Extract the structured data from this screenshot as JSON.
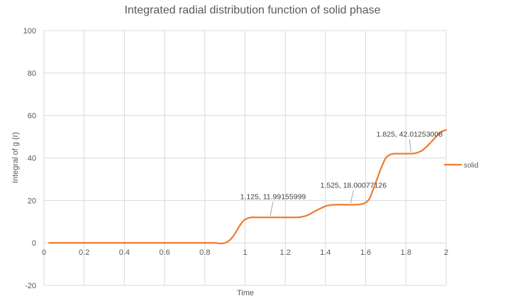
{
  "chart_data": {
    "type": "line",
    "title": "Integrated radial distribution function of solid phase",
    "xlabel": "Time",
    "ylabel": "Integral of g (r)",
    "xlim": [
      0,
      2
    ],
    "ylim": [
      -20,
      100
    ],
    "x_ticks": [
      "0",
      "0.2",
      "0.4",
      "0.6",
      "0.8",
      "1",
      "1.2",
      "1.4",
      "1.6",
      "1.8",
      "2"
    ],
    "y_ticks": [
      "-20",
      "0",
      "20",
      "40",
      "60",
      "80",
      "100"
    ],
    "grid": true,
    "legend_position": "right",
    "series": [
      {
        "name": "solid",
        "color": "#ED7D31",
        "x": [
          0.025,
          0.1,
          0.2,
          0.3,
          0.4,
          0.5,
          0.6,
          0.7,
          0.8,
          0.85,
          0.88,
          0.9,
          0.92,
          0.94,
          0.96,
          0.98,
          1.0,
          1.03,
          1.06,
          1.1,
          1.125,
          1.15,
          1.2,
          1.25,
          1.28,
          1.31,
          1.34,
          1.37,
          1.4,
          1.43,
          1.46,
          1.5,
          1.525,
          1.55,
          1.58,
          1.6,
          1.62,
          1.64,
          1.66,
          1.68,
          1.7,
          1.72,
          1.74,
          1.77,
          1.8,
          1.825,
          1.85,
          1.88,
          1.91,
          1.94,
          1.97,
          2.0
        ],
        "y": [
          0,
          0,
          0,
          0,
          0,
          0,
          0,
          0,
          0,
          0,
          -0.3,
          0,
          1,
          3,
          6,
          9,
          11,
          12,
          12,
          12,
          11.99,
          12,
          12,
          12,
          12.2,
          13,
          14.5,
          16,
          17.3,
          17.9,
          18,
          18,
          18,
          18,
          18.3,
          19,
          21,
          26,
          31,
          36,
          40,
          41.5,
          42,
          42,
          42,
          42.01,
          42.3,
          43.5,
          46,
          49,
          52,
          53.2
        ]
      }
    ],
    "annotations": [
      {
        "x": 1.125,
        "y": 11.99155999,
        "text": "1.125, 11.99155999"
      },
      {
        "x": 1.525,
        "y": 18.00077126,
        "text": "1.525, 18.00077126"
      },
      {
        "x": 1.825,
        "y": 42.01253008,
        "text": "1.825, 42.01253008"
      }
    ]
  }
}
